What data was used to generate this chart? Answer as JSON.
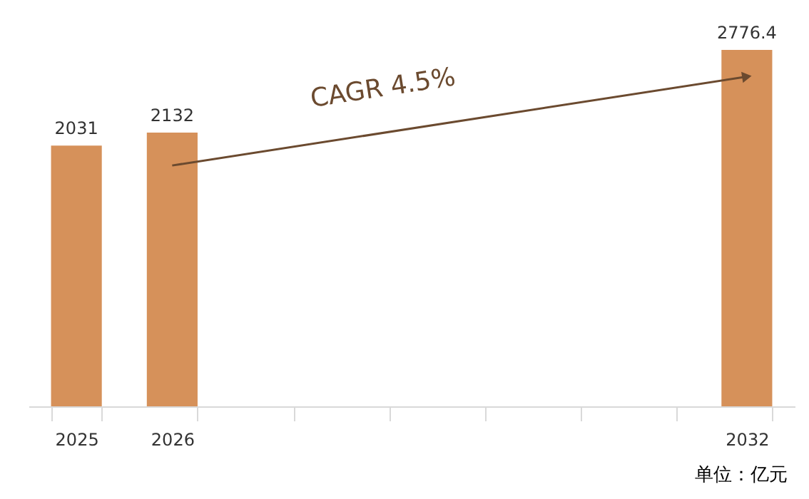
{
  "chart_data": {
    "type": "bar",
    "categories": [
      "2025",
      "2026",
      null,
      null,
      null,
      null,
      null,
      "2032"
    ],
    "values": [
      2031,
      2132,
      null,
      null,
      null,
      null,
      null,
      2776.4
    ],
    "color": "#d6915a",
    "data_labels": true,
    "annotations": [
      "CAGR 4.5%",
      "单位：亿元"
    ]
  }
}
